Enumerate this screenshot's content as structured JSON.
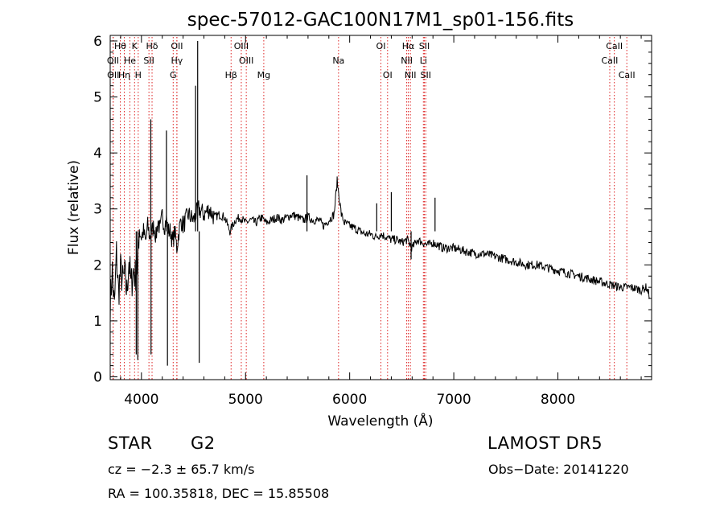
{
  "chart_data": {
    "type": "line",
    "title": "spec-57012-GAC100N17M1_sp01-156.fits",
    "xlabel": "Wavelength (Å)",
    "ylabel": "Flux (relative)",
    "xlim": [
      3700,
      8900
    ],
    "ylim": [
      -0.05,
      6.1
    ],
    "x_ticks": [
      4000,
      5000,
      6000,
      7000,
      8000
    ],
    "y_ticks": [
      0,
      1,
      2,
      3,
      4,
      5,
      6
    ],
    "grid": false,
    "series": [
      {
        "x": [
          3700,
          3720,
          3740,
          3760,
          3780,
          3800,
          3820,
          3840,
          3860,
          3880,
          3900,
          3920,
          3940,
          3960,
          3980,
          4000,
          4020,
          4040,
          4060,
          4080,
          4100,
          4120,
          4140,
          4160,
          4180,
          4200,
          4220,
          4240,
          4260,
          4280,
          4300,
          4320,
          4340,
          4360,
          4380,
          4400,
          4450,
          4500,
          4550,
          4600,
          4650,
          4700,
          4750,
          4800,
          4850,
          4900,
          4950,
          5000,
          5050,
          5100,
          5150,
          5200,
          5250,
          5300,
          5350,
          5400,
          5450,
          5500,
          5550,
          5600,
          5650,
          5700,
          5750,
          5800,
          5850,
          5880,
          5900,
          5920,
          5950,
          6000,
          6050,
          6100,
          6150,
          6200,
          6250,
          6300,
          6350,
          6400,
          6450,
          6500,
          6550,
          6600,
          6650,
          6700,
          6750,
          6800,
          6850,
          6900,
          7000,
          7100,
          7200,
          7300,
          7400,
          7500,
          7600,
          7700,
          7800,
          7900,
          8000,
          8100,
          8200,
          8300,
          8400,
          8500,
          8600,
          8700,
          8800,
          8850,
          8880
        ],
        "y": [
          1.3,
          1.9,
          1.2,
          2.2,
          1.5,
          1.9,
          1.7,
          1.8,
          1.5,
          2.1,
          1.6,
          1.9,
          1.8,
          2.0,
          2.7,
          2.5,
          2.6,
          2.4,
          2.7,
          2.5,
          2.6,
          2.7,
          2.5,
          2.8,
          2.6,
          2.9,
          2.7,
          2.8,
          2.6,
          2.6,
          2.4,
          2.6,
          2.3,
          2.6,
          2.8,
          2.7,
          2.9,
          2.8,
          3.0,
          2.9,
          3.0,
          2.85,
          2.9,
          2.85,
          2.6,
          2.8,
          2.85,
          2.75,
          2.8,
          2.75,
          2.85,
          2.75,
          2.8,
          2.85,
          2.8,
          2.85,
          2.9,
          2.85,
          2.8,
          2.85,
          2.8,
          2.8,
          2.7,
          2.8,
          2.9,
          3.5,
          3.2,
          2.9,
          2.75,
          2.7,
          2.65,
          2.6,
          2.55,
          2.55,
          2.5,
          2.55,
          2.5,
          2.45,
          2.45,
          2.4,
          2.45,
          2.3,
          2.45,
          2.4,
          2.35,
          2.4,
          2.35,
          2.3,
          2.3,
          2.25,
          2.2,
          2.2,
          2.15,
          2.1,
          2.05,
          2.0,
          2.0,
          1.95,
          1.9,
          1.85,
          1.8,
          1.75,
          1.7,
          1.65,
          1.6,
          1.6,
          1.55,
          1.6,
          1.45
        ]
      }
    ],
    "lines": [
      {
        "label": "Hθ",
        "x": 3797,
        "row": 0
      },
      {
        "label": "K",
        "x": 3934,
        "row": 0
      },
      {
        "label": "Hδ",
        "x": 4102,
        "row": 0
      },
      {
        "label": "OII",
        "x": 4341,
        "row": 0
      },
      {
        "label": "OIII",
        "x": 4959,
        "row": 0
      },
      {
        "label": "OI",
        "x": 6300,
        "row": 0
      },
      {
        "label": "Hα",
        "x": 6563,
        "row": 0
      },
      {
        "label": "SII",
        "x": 6717,
        "row": 0
      },
      {
        "label": "CaII",
        "x": 8542,
        "row": 0
      },
      {
        "label": "OII",
        "x": 3727,
        "row": 1
      },
      {
        "label": "He",
        "x": 3889,
        "row": 1
      },
      {
        "label": "SII",
        "x": 4072,
        "row": 1
      },
      {
        "label": "Hγ",
        "x": 4340,
        "row": 1
      },
      {
        "label": "OIII",
        "x": 5007,
        "row": 1
      },
      {
        "label": "Na",
        "x": 5893,
        "row": 1
      },
      {
        "label": "NII",
        "x": 6548,
        "row": 1
      },
      {
        "label": "Li",
        "x": 6708,
        "row": 1
      },
      {
        "label": "CaII",
        "x": 8498,
        "row": 1
      },
      {
        "label": "OII",
        "x": 3729,
        "row": 2
      },
      {
        "label": "Hη",
        "x": 3835,
        "row": 2
      },
      {
        "label": "H",
        "x": 3969,
        "row": 2
      },
      {
        "label": "G",
        "x": 4305,
        "row": 2
      },
      {
        "label": "Hβ",
        "x": 4861,
        "row": 2
      },
      {
        "label": "Mg",
        "x": 5175,
        "row": 2
      },
      {
        "label": "OI",
        "x": 6364,
        "row": 2
      },
      {
        "label": "NII",
        "x": 6583,
        "row": 2
      },
      {
        "label": "SII",
        "x": 6731,
        "row": 2
      },
      {
        "label": "CaII",
        "x": 8662,
        "row": 2
      }
    ],
    "spikes": [
      {
        "x": 3950,
        "top": 0.4
      },
      {
        "x": 3965,
        "top": 0.3
      },
      {
        "x": 4090,
        "top": 4.6
      },
      {
        "x": 4092,
        "top": 0.4
      },
      {
        "x": 4240,
        "top": 4.4
      },
      {
        "x": 4250,
        "top": 0.2
      },
      {
        "x": 4520,
        "top": 5.2
      },
      {
        "x": 4540,
        "top": 6.0
      },
      {
        "x": 4555,
        "top": 0.25
      },
      {
        "x": 5590,
        "top": 3.6
      },
      {
        "x": 6260,
        "top": 3.1
      },
      {
        "x": 6400,
        "top": 3.3
      },
      {
        "x": 6820,
        "top": 3.2
      },
      {
        "x": 6590,
        "top": 2.1
      }
    ]
  },
  "info": {
    "object_class": "STAR",
    "subclass": "G2",
    "survey": "LAMOST DR5",
    "cz": "cz = −2.3 ± 65.7 km/s",
    "obs_date": "Obs−Date: 20141220",
    "coords": "RA = 100.35818, DEC =  15.85508"
  }
}
